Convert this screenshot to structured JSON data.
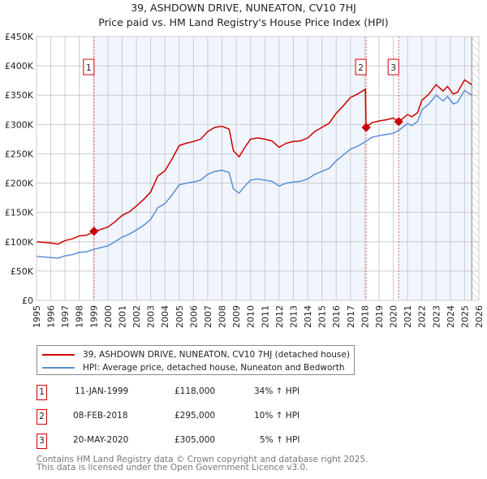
{
  "chart_data": {
    "type": "line",
    "title": "39, ASHDOWN DRIVE, NUNEATON, CV10 7HJ",
    "subtitle": "Price paid vs. HM Land Registry's House Price Index (HPI)",
    "xlim": [
      1995,
      2026
    ],
    "ylim": [
      0,
      450000
    ],
    "x_ticks": [
      "1995",
      "1996",
      "1997",
      "1998",
      "1999",
      "2000",
      "2001",
      "2002",
      "2003",
      "2004",
      "2005",
      "2006",
      "2007",
      "2008",
      "2009",
      "2010",
      "2011",
      "2012",
      "2013",
      "2014",
      "2015",
      "2016",
      "2017",
      "2018",
      "2019",
      "2020",
      "2021",
      "2022",
      "2023",
      "2024",
      "2025",
      "2026"
    ],
    "y_ticks": [
      {
        "v": 0,
        "label": "£0"
      },
      {
        "v": 50000,
        "label": "£50K"
      },
      {
        "v": 100000,
        "label": "£100K"
      },
      {
        "v": 150000,
        "label": "£150K"
      },
      {
        "v": 200000,
        "label": "£200K"
      },
      {
        "v": 250000,
        "label": "£250K"
      },
      {
        "v": 300000,
        "label": "£300K"
      },
      {
        "v": 350000,
        "label": "£350K"
      },
      {
        "v": 400000,
        "label": "£400K"
      },
      {
        "v": 450000,
        "label": "£450K"
      }
    ],
    "grid": true,
    "series": [
      {
        "name": "39, ASHDOWN DRIVE, NUNEATON, CV10 7HJ (detached house)",
        "color": "#cc0000",
        "x": [
          1995,
          1996,
          1996.5,
          1997,
          1997.5,
          1998,
          1998.5,
          1999,
          1999.5,
          2000,
          2000.5,
          2001,
          2001.5,
          2002,
          2002.5,
          2003,
          2003.5,
          2004,
          2004.5,
          2005,
          2005.5,
          2006,
          2006.5,
          2007,
          2007.5,
          2008,
          2008.5,
          2008.8,
          2009.2,
          2009.6,
          2010,
          2010.5,
          2011,
          2011.5,
          2012,
          2012.5,
          2013,
          2013.5,
          2014,
          2014.5,
          2015,
          2015.5,
          2016,
          2016.5,
          2017,
          2017.5,
          2018.05,
          2018.1,
          2018.5,
          2019,
          2019.5,
          2020,
          2020.38,
          2020.5,
          2021,
          2021.3,
          2021.7,
          2022,
          2022.5,
          2023,
          2023.5,
          2023.8,
          2024.2,
          2024.5,
          2025,
          2025.5
        ],
        "y": [
          100000,
          98000,
          96000,
          102000,
          105000,
          110000,
          111000,
          117000,
          121000,
          125000,
          134000,
          145000,
          151000,
          161000,
          172000,
          185000,
          212000,
          221000,
          241000,
          264000,
          268000,
          271000,
          275000,
          288000,
          295000,
          297000,
          292000,
          255000,
          245000,
          261000,
          275000,
          277000,
          275000,
          272000,
          261000,
          268000,
          271000,
          272000,
          277000,
          288000,
          295000,
          302000,
          319000,
          332000,
          346000,
          352000,
          360000,
          295000,
          303000,
          306000,
          308000,
          311000,
          305000,
          307000,
          317000,
          313000,
          320000,
          341000,
          352000,
          368000,
          357000,
          365000,
          352000,
          355000,
          376000,
          368000
        ]
      },
      {
        "name": "HPI: Average price, detached house, Nuneaton and Bedworth",
        "color": "#5b8fd6",
        "x": [
          1995,
          1996,
          1996.5,
          1997,
          1997.5,
          1998,
          1998.5,
          1999,
          1999.5,
          2000,
          2000.5,
          2001,
          2001.5,
          2002,
          2002.5,
          2003,
          2003.5,
          2004,
          2004.5,
          2005,
          2005.5,
          2006,
          2006.5,
          2007,
          2007.5,
          2008,
          2008.5,
          2008.8,
          2009.2,
          2009.6,
          2010,
          2010.5,
          2011,
          2011.5,
          2012,
          2012.5,
          2013,
          2013.5,
          2014,
          2014.5,
          2015,
          2015.5,
          2016,
          2016.5,
          2017,
          2017.5,
          2018,
          2018.5,
          2019,
          2019.5,
          2020,
          2020.5,
          2021,
          2021.3,
          2021.7,
          2022,
          2022.5,
          2023,
          2023.5,
          2023.8,
          2024.2,
          2024.5,
          2025,
          2025.5
        ],
        "y": [
          75000,
          73000,
          72000,
          76000,
          78000,
          82000,
          83000,
          87000,
          90000,
          93000,
          100000,
          108000,
          113000,
          120000,
          128000,
          138000,
          158000,
          165000,
          180000,
          197000,
          200000,
          202000,
          205000,
          215000,
          220000,
          222000,
          218000,
          190000,
          183000,
          195000,
          205000,
          207000,
          205000,
          203000,
          195000,
          200000,
          202000,
          203000,
          207000,
          215000,
          220000,
          225000,
          238000,
          248000,
          258000,
          263000,
          270000,
          278000,
          281000,
          283000,
          285000,
          292000,
          302000,
          298000,
          305000,
          325000,
          335000,
          350000,
          340000,
          348000,
          335000,
          338000,
          358000,
          350000
        ]
      }
    ],
    "sales": [
      {
        "label": "1",
        "x": 1999.03,
        "price": 118000,
        "date": "11-JAN-1999",
        "price_text": "£118,000",
        "hpi_text": "34% ↑ HPI"
      },
      {
        "label": "2",
        "x": 2018.1,
        "price": 295000,
        "date": "08-FEB-2018",
        "price_text": "£295,000",
        "hpi_text": "10% ↑ HPI"
      },
      {
        "label": "3",
        "x": 2020.38,
        "price": 305000,
        "date": "20-MAY-2020",
        "price_text": "£305,000",
        "hpi_text": "5% ↑ HPI"
      }
    ],
    "data_end": 2025.5,
    "legend_placement": "bottom"
  },
  "footer": {
    "line1": "Contains HM Land Registry data © Crown copyright and database right 2025.",
    "line2": "This data is licensed under the Open Government Licence v3.0."
  }
}
